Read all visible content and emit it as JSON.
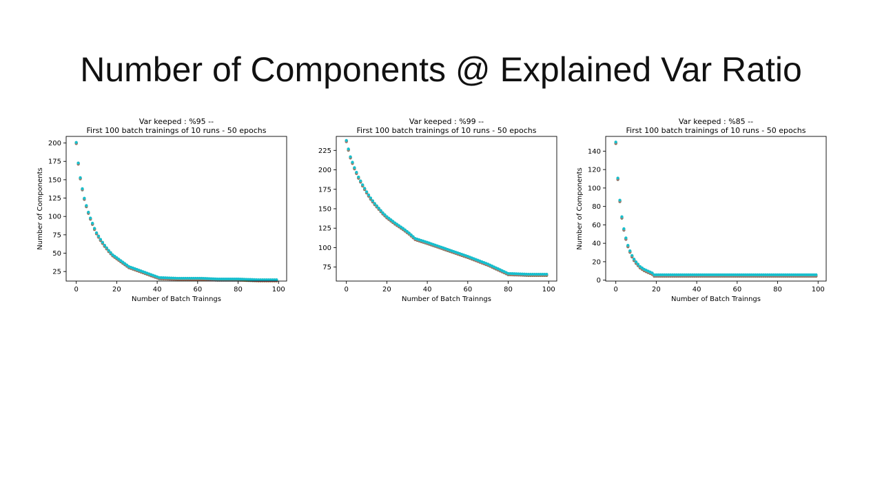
{
  "slide": {
    "title": "Number of Components @ Explained Var Ratio"
  },
  "colors": {
    "series": [
      "#1f77b4",
      "#ff7f0e",
      "#2ca02c",
      "#d62728",
      "#9467bd",
      "#8c564b",
      "#e377c2",
      "#7f7f7f",
      "#bcbd22",
      "#17becf"
    ]
  },
  "chart_data": [
    {
      "type": "scatter",
      "title": "Var keeped : %95 --",
      "subtitle": "First 100 batch trainings of 10 runs - 50 epochs",
      "xlabel": "Number of Batch Trainngs",
      "ylabel": "Number of Components",
      "xlim": [
        -5,
        104
      ],
      "ylim": [
        12,
        209
      ],
      "xticks": [
        0,
        20,
        40,
        60,
        80,
        100
      ],
      "yticks": [
        25,
        50,
        75,
        100,
        125,
        150,
        175,
        200
      ],
      "runs": 10,
      "x_range": [
        0,
        99
      ],
      "anchors": [
        [
          0,
          200
        ],
        [
          1,
          172
        ],
        [
          2,
          152
        ],
        [
          3,
          137
        ],
        [
          4,
          124
        ],
        [
          5,
          114
        ],
        [
          6,
          105
        ],
        [
          7,
          97
        ],
        [
          8,
          90
        ],
        [
          9,
          83
        ],
        [
          10,
          77
        ],
        [
          12,
          68
        ],
        [
          14,
          60
        ],
        [
          16,
          53
        ],
        [
          18,
          47
        ],
        [
          20,
          43
        ],
        [
          22,
          39
        ],
        [
          24,
          35
        ],
        [
          26,
          31
        ],
        [
          30,
          27
        ],
        [
          34,
          23
        ],
        [
          38,
          19
        ],
        [
          41,
          16
        ],
        [
          50,
          15
        ],
        [
          62,
          15
        ],
        [
          70,
          14
        ],
        [
          80,
          14
        ],
        [
          90,
          13
        ],
        [
          99,
          13
        ]
      ]
    },
    {
      "type": "scatter",
      "title": "Var keeped : %99 --",
      "subtitle": "First 100 batch trainings of 10 runs - 50 epochs",
      "xlabel": "Number of Batch Trainngs",
      "ylabel": "",
      "xlim": [
        -5,
        104
      ],
      "ylim": [
        57,
        243
      ],
      "xticks": [
        0,
        20,
        40,
        60,
        80,
        100
      ],
      "yticks": [
        75,
        100,
        125,
        150,
        175,
        200,
        225
      ],
      "runs": 10,
      "x_range": [
        0,
        99
      ],
      "anchors": [
        [
          0,
          237
        ],
        [
          1,
          226
        ],
        [
          2,
          216
        ],
        [
          3,
          209
        ],
        [
          4,
          202
        ],
        [
          5,
          196
        ],
        [
          6,
          190
        ],
        [
          8,
          180
        ],
        [
          10,
          171
        ],
        [
          12,
          163
        ],
        [
          14,
          156
        ],
        [
          16,
          150
        ],
        [
          18,
          144
        ],
        [
          20,
          139
        ],
        [
          24,
          131
        ],
        [
          28,
          124
        ],
        [
          31,
          118
        ],
        [
          34,
          111
        ],
        [
          40,
          106
        ],
        [
          50,
          97
        ],
        [
          60,
          88
        ],
        [
          70,
          78
        ],
        [
          80,
          66
        ],
        [
          90,
          65
        ],
        [
          99,
          65
        ]
      ]
    },
    {
      "type": "scatter",
      "title": "Var keeped : %85 --",
      "subtitle": "First 100 batch trainings of 10 runs - 50 epochs",
      "xlabel": "Number of Batch Trainngs",
      "ylabel": "Number of Components",
      "xlim": [
        -5,
        104
      ],
      "ylim": [
        -1,
        156
      ],
      "xticks": [
        0,
        20,
        40,
        60,
        80,
        100
      ],
      "yticks": [
        0,
        20,
        40,
        60,
        80,
        100,
        120,
        140
      ],
      "runs": 10,
      "x_range": [
        0,
        99
      ],
      "anchors": [
        [
          0,
          149
        ],
        [
          1,
          110
        ],
        [
          2,
          86
        ],
        [
          3,
          68
        ],
        [
          4,
          55
        ],
        [
          5,
          45
        ],
        [
          6,
          37
        ],
        [
          7,
          31
        ],
        [
          8,
          26
        ],
        [
          9,
          22
        ],
        [
          10,
          19
        ],
        [
          12,
          14
        ],
        [
          14,
          11
        ],
        [
          16,
          9
        ],
        [
          18,
          7
        ],
        [
          19,
          5
        ],
        [
          99,
          5
        ]
      ]
    }
  ]
}
